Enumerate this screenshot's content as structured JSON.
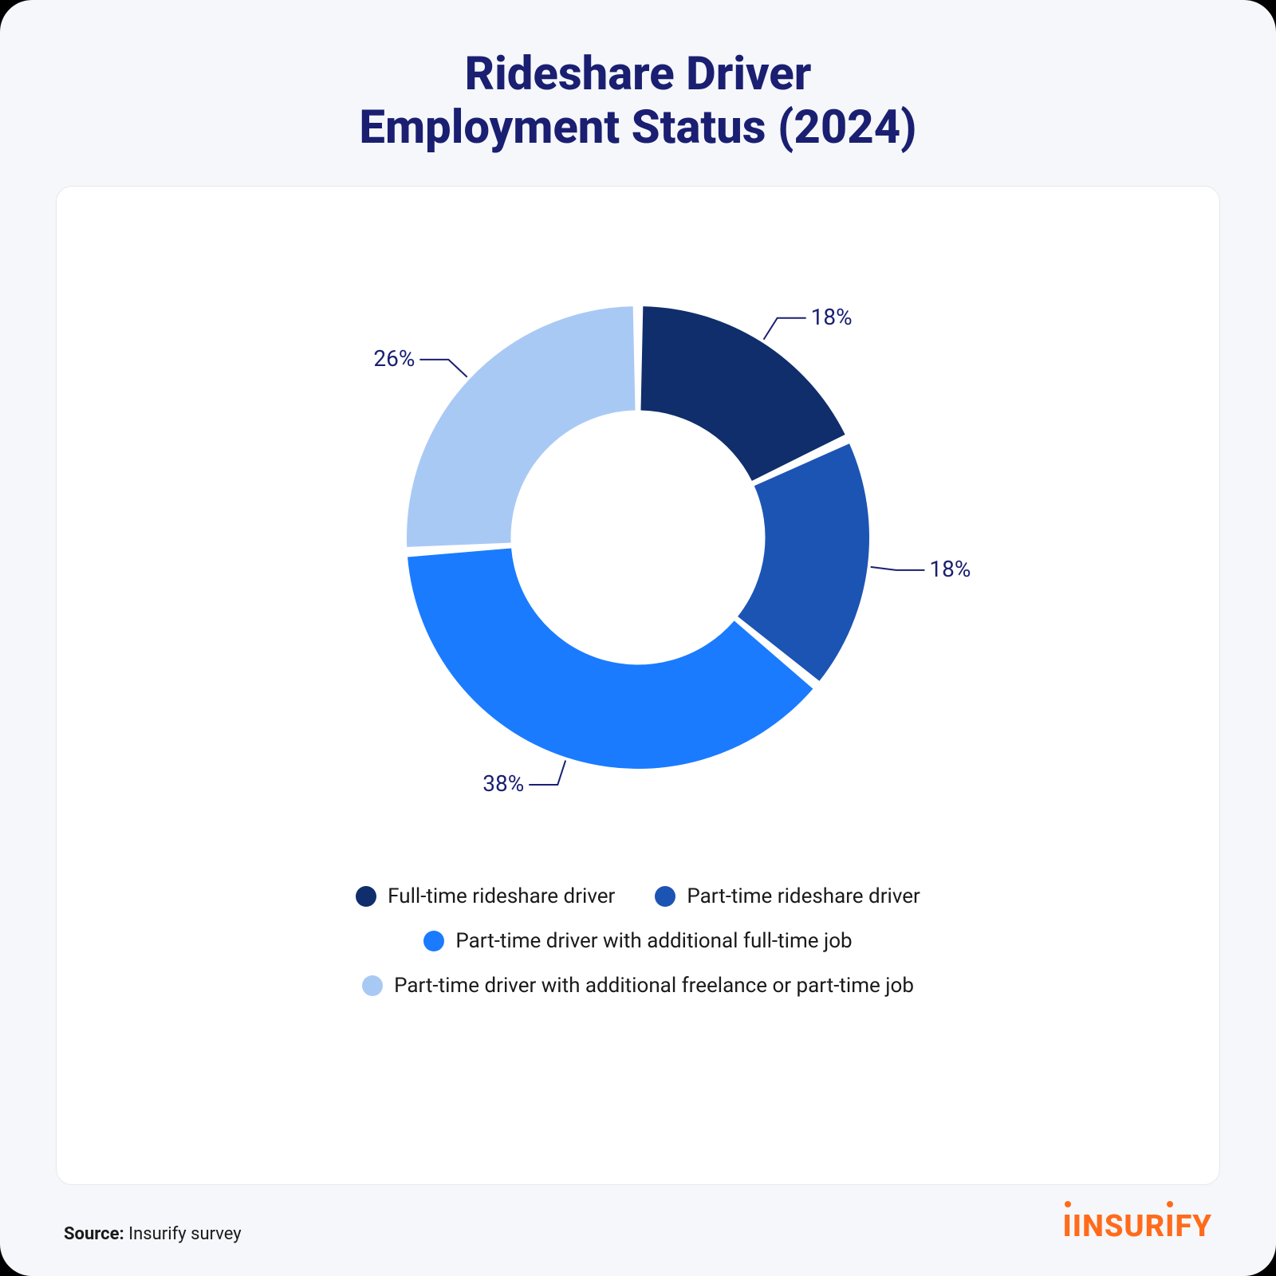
{
  "title_line1": "Rideshare Driver",
  "title_line2": "Employment Status (2024)",
  "title_color": "#1a1f71",
  "title_fontsize": 58,
  "page_bg": "#f5f7fa",
  "card_bg": "#ffffff",
  "card_border": "#e6e8ec",
  "chart": {
    "type": "donut",
    "inner_radius_ratio": 0.55,
    "gap_deg": 2.5,
    "start_angle_deg": -90,
    "label_color": "#1a1f71",
    "label_fontsize": 28,
    "leader_color": "#1a1f71",
    "slices": [
      {
        "value": 18,
        "label": "18%",
        "color": "#0f2e6b",
        "legend": "Full-time rideshare driver"
      },
      {
        "value": 18,
        "label": "18%",
        "color": "#1c54b4",
        "legend": "Part-time rideshare driver"
      },
      {
        "value": 38,
        "label": "38%",
        "color": "#1a7bff",
        "legend": "Part-time driver with additional full-time job"
      },
      {
        "value": 26,
        "label": "26%",
        "color": "#a9c9f5",
        "legend": "Part-time driver with additional freelance or part-time job"
      }
    ]
  },
  "legend_rows": [
    [
      0,
      1
    ],
    [
      2
    ],
    [
      3
    ]
  ],
  "legend_text_color": "#1a1a1a",
  "legend_fontsize": 26,
  "source_label": "Source:",
  "source_value": "Insurify survey",
  "brand": {
    "text_before": "INSUR",
    "text_after": "FY",
    "color_main": "#ff6b1a",
    "dot_color": "#ff6b1a"
  }
}
